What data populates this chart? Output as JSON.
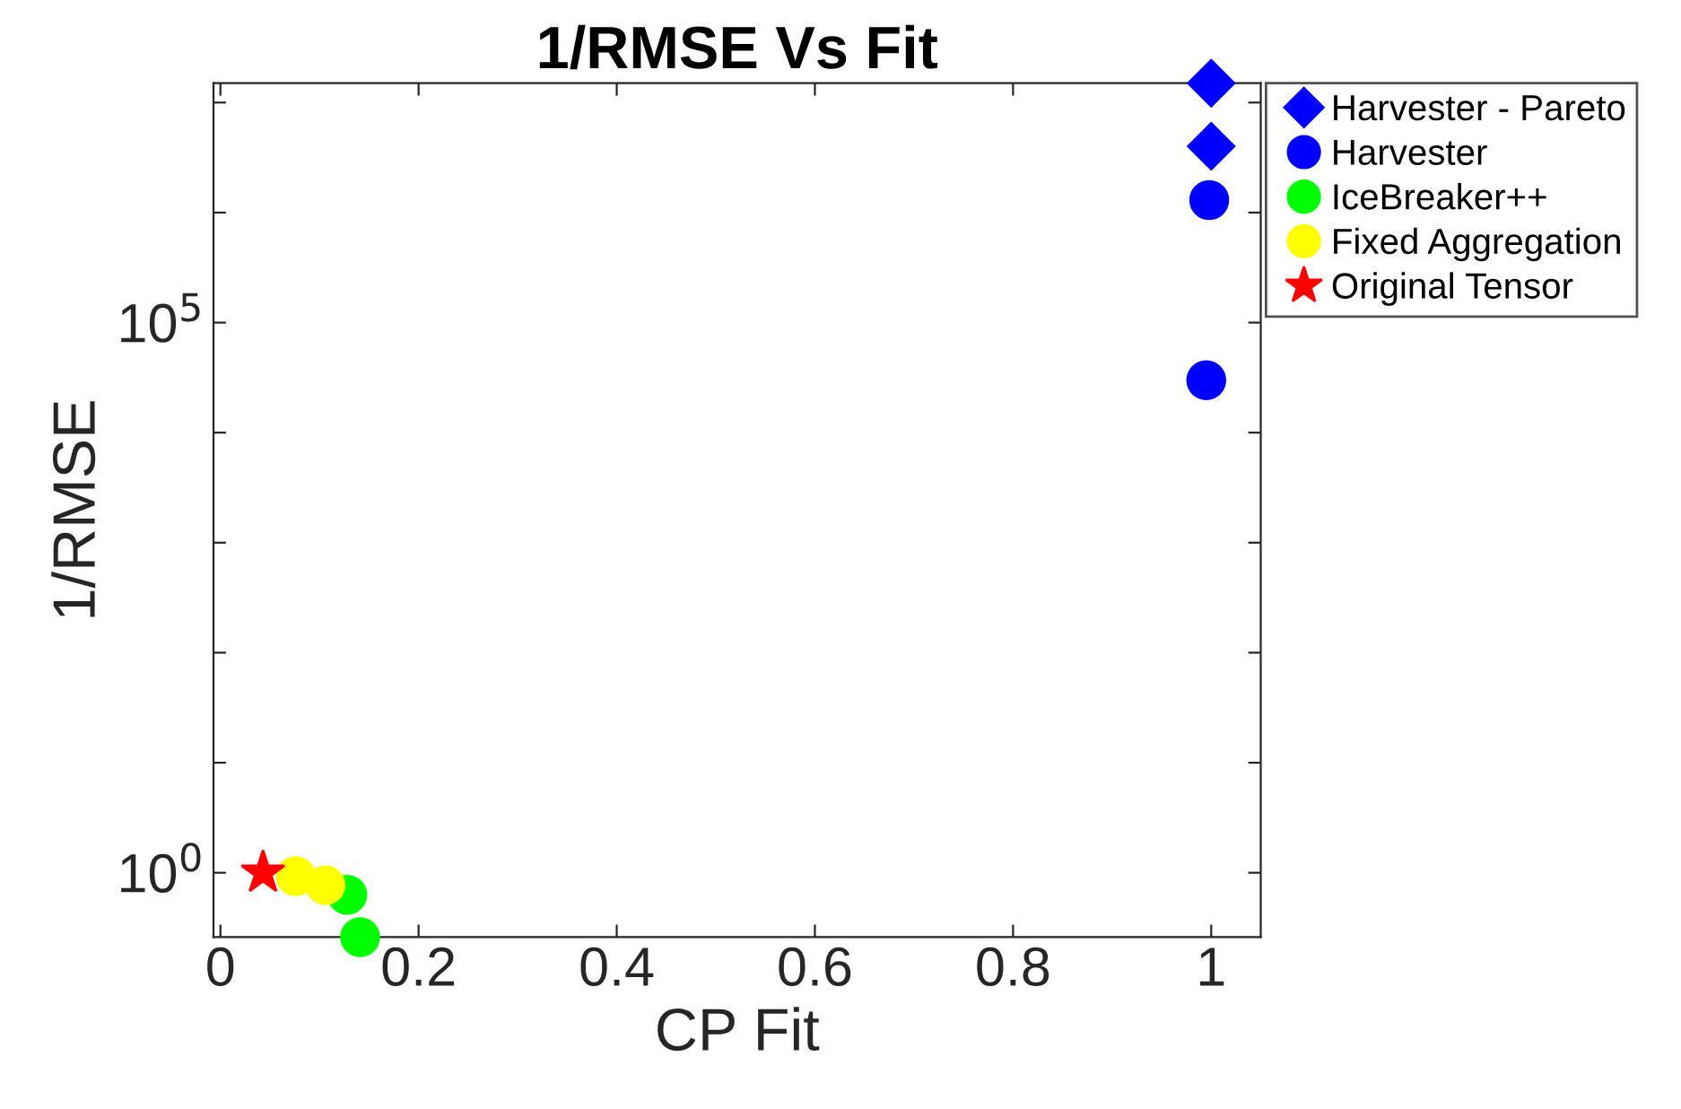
{
  "chart_data": {
    "type": "scatter",
    "title": "1/RMSE Vs Fit",
    "xlabel": "CP Fit",
    "ylabel": "1/RMSE",
    "log": "y",
    "grid": false,
    "legend": "top right",
    "xlim": [
      -0.007,
      1.05
    ],
    "xticks": [
      {
        "value": 0,
        "label": "0"
      },
      0.2,
      0.4,
      0.6,
      0.8,
      {
        "value": 1,
        "label": "1"
      }
    ],
    "ylim": [
      0.26,
      15000000.0
    ],
    "yticks": [
      {
        "value": 1,
        "label": "10$^{0}$"
      },
      {
        "value": 10,
        "label": null
      },
      {
        "value": 100,
        "label": null
      },
      {
        "value": 1000,
        "label": null
      },
      {
        "value": 10000,
        "label": null
      },
      {
        "value": 100000,
        "label": "10$^{5}$"
      },
      {
        "value": 1000000,
        "label": null
      },
      {
        "value": 10000000,
        "label": null
      }
    ],
    "series": [
      {
        "name": "Harvester - Pareto",
        "color": "#0000ff",
        "marker": "diamond",
        "x": [
          1.0,
          1.0
        ],
        "values": [
          15000000.0,
          4000000.0
        ]
      },
      {
        "name": "Harvester",
        "color": "#0000ff",
        "marker": "circle",
        "x": [
          0.998,
          0.995
        ],
        "values": [
          1300000.0,
          30000.0
        ]
      },
      {
        "name": "IceBreaker++",
        "color": "#00ff00",
        "marker": "circle",
        "x": [
          0.128,
          0.141
        ],
        "values": [
          0.63,
          0.26
        ]
      },
      {
        "name": "Fixed Aggregation",
        "color": "#ffff00",
        "marker": "circle",
        "x": [
          0.076,
          0.106
        ],
        "values": [
          0.93,
          0.77
        ]
      },
      {
        "name": "Original Tensor",
        "color": "#ff0000",
        "marker": "star",
        "x": [
          0.043
        ],
        "values": [
          1.0
        ]
      }
    ]
  }
}
